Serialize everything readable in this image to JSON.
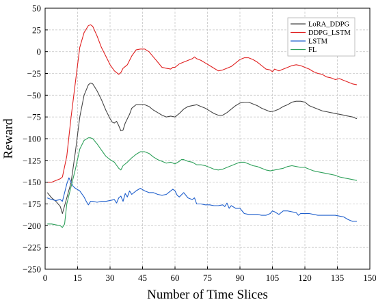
{
  "chart_data": {
    "type": "line",
    "xlabel": "Number of Time Slices",
    "ylabel": "Reward",
    "xlim": [
      0,
      150
    ],
    "ylim": [
      -250,
      50
    ],
    "xticks": [
      0,
      15,
      30,
      45,
      60,
      75,
      90,
      105,
      120,
      135,
      150
    ],
    "yticks": [
      50,
      25,
      0,
      -25,
      -50,
      -75,
      -100,
      -125,
      -150,
      -175,
      -200,
      -225,
      -250
    ],
    "grid": true,
    "legend_position": "top-right",
    "series": [
      {
        "name": "LoRA_DDPG",
        "color": "#444444",
        "points": [
          [
            1,
            -162
          ],
          [
            3,
            -168
          ],
          [
            5,
            -172
          ],
          [
            7,
            -178
          ],
          [
            8,
            -186
          ],
          [
            10,
            -168
          ],
          [
            12,
            -150
          ],
          [
            14,
            -115
          ],
          [
            16,
            -75
          ],
          [
            18,
            -50
          ],
          [
            20,
            -38
          ],
          [
            21,
            -36
          ],
          [
            22,
            -37
          ],
          [
            24,
            -45
          ],
          [
            26,
            -55
          ],
          [
            28,
            -67
          ],
          [
            30,
            -77
          ],
          [
            31,
            -81
          ],
          [
            32,
            -82
          ],
          [
            33,
            -80
          ],
          [
            34,
            -85
          ],
          [
            35,
            -91
          ],
          [
            36,
            -90
          ],
          [
            37,
            -82
          ],
          [
            39,
            -72
          ],
          [
            40,
            -65
          ],
          [
            42,
            -61
          ],
          [
            44,
            -61
          ],
          [
            46,
            -61
          ],
          [
            48,
            -63
          ],
          [
            50,
            -67
          ],
          [
            52,
            -70
          ],
          [
            54,
            -73
          ],
          [
            56,
            -75
          ],
          [
            58,
            -74
          ],
          [
            60,
            -75
          ],
          [
            62,
            -71
          ],
          [
            64,
            -66
          ],
          [
            66,
            -63
          ],
          [
            68,
            -62
          ],
          [
            70,
            -61
          ],
          [
            72,
            -63
          ],
          [
            74,
            -65
          ],
          [
            76,
            -68
          ],
          [
            78,
            -71
          ],
          [
            80,
            -73
          ],
          [
            82,
            -73
          ],
          [
            84,
            -70
          ],
          [
            86,
            -66
          ],
          [
            88,
            -62
          ],
          [
            90,
            -59
          ],
          [
            92,
            -58
          ],
          [
            94,
            -58
          ],
          [
            96,
            -60
          ],
          [
            98,
            -62
          ],
          [
            100,
            -65
          ],
          [
            102,
            -67
          ],
          [
            104,
            -69
          ],
          [
            106,
            -68
          ],
          [
            108,
            -66
          ],
          [
            110,
            -63
          ],
          [
            112,
            -61
          ],
          [
            114,
            -58
          ],
          [
            116,
            -57
          ],
          [
            118,
            -57
          ],
          [
            120,
            -58
          ],
          [
            122,
            -62
          ],
          [
            124,
            -64
          ],
          [
            126,
            -66
          ],
          [
            128,
            -68
          ],
          [
            130,
            -69
          ],
          [
            132,
            -70
          ],
          [
            134,
            -71
          ],
          [
            136,
            -72
          ],
          [
            138,
            -73
          ],
          [
            140,
            -74
          ],
          [
            142,
            -75
          ],
          [
            144,
            -77
          ]
        ]
      },
      {
        "name": "DDPG_LSTM",
        "color": "#e02020",
        "points": [
          [
            1,
            -150
          ],
          [
            3,
            -150
          ],
          [
            5,
            -148
          ],
          [
            7,
            -146
          ],
          [
            8,
            -144
          ],
          [
            10,
            -120
          ],
          [
            12,
            -75
          ],
          [
            14,
            -35
          ],
          [
            16,
            5
          ],
          [
            18,
            22
          ],
          [
            20,
            30
          ],
          [
            21,
            31
          ],
          [
            22,
            29
          ],
          [
            24,
            18
          ],
          [
            26,
            5
          ],
          [
            28,
            -5
          ],
          [
            30,
            -15
          ],
          [
            32,
            -22
          ],
          [
            34,
            -26
          ],
          [
            35,
            -24
          ],
          [
            36,
            -19
          ],
          [
            38,
            -15
          ],
          [
            40,
            -5
          ],
          [
            42,
            2
          ],
          [
            44,
            3
          ],
          [
            46,
            3
          ],
          [
            48,
            0
          ],
          [
            50,
            -6
          ],
          [
            52,
            -12
          ],
          [
            54,
            -18
          ],
          [
            56,
            -19
          ],
          [
            58,
            -20
          ],
          [
            59,
            -18
          ],
          [
            60,
            -18
          ],
          [
            62,
            -14
          ],
          [
            64,
            -12
          ],
          [
            66,
            -10
          ],
          [
            68,
            -8
          ],
          [
            69,
            -6
          ],
          [
            70,
            -8
          ],
          [
            72,
            -10
          ],
          [
            74,
            -13
          ],
          [
            76,
            -16
          ],
          [
            78,
            -19
          ],
          [
            80,
            -22
          ],
          [
            82,
            -21
          ],
          [
            84,
            -19
          ],
          [
            86,
            -17
          ],
          [
            88,
            -13
          ],
          [
            90,
            -9
          ],
          [
            92,
            -7
          ],
          [
            94,
            -7
          ],
          [
            96,
            -9
          ],
          [
            98,
            -12
          ],
          [
            100,
            -16
          ],
          [
            102,
            -20
          ],
          [
            104,
            -21
          ],
          [
            105,
            -23
          ],
          [
            106,
            -20
          ],
          [
            108,
            -22
          ],
          [
            110,
            -20
          ],
          [
            112,
            -18
          ],
          [
            114,
            -16
          ],
          [
            116,
            -15
          ],
          [
            118,
            -16
          ],
          [
            120,
            -18
          ],
          [
            122,
            -20
          ],
          [
            124,
            -23
          ],
          [
            126,
            -25
          ],
          [
            128,
            -26
          ],
          [
            130,
            -29
          ],
          [
            132,
            -30
          ],
          [
            134,
            -32
          ],
          [
            136,
            -31
          ],
          [
            138,
            -33
          ],
          [
            140,
            -35
          ],
          [
            142,
            -37
          ],
          [
            144,
            -38
          ]
        ]
      },
      {
        "name": "LSTM",
        "color": "#1f5fcc",
        "points": [
          [
            1,
            -168
          ],
          [
            3,
            -170
          ],
          [
            5,
            -171
          ],
          [
            7,
            -170
          ],
          [
            8,
            -172
          ],
          [
            10,
            -152
          ],
          [
            11,
            -145
          ],
          [
            12,
            -150
          ],
          [
            13,
            -155
          ],
          [
            14,
            -157
          ],
          [
            16,
            -160
          ],
          [
            18,
            -167
          ],
          [
            19,
            -172
          ],
          [
            20,
            -176
          ],
          [
            21,
            -172
          ],
          [
            22,
            -172
          ],
          [
            24,
            -173
          ],
          [
            26,
            -172
          ],
          [
            28,
            -172
          ],
          [
            30,
            -171
          ],
          [
            32,
            -170
          ],
          [
            33,
            -174
          ],
          [
            34,
            -168
          ],
          [
            35,
            -166
          ],
          [
            36,
            -172
          ],
          [
            37,
            -163
          ],
          [
            38,
            -167
          ],
          [
            39,
            -160
          ],
          [
            40,
            -164
          ],
          [
            42,
            -160
          ],
          [
            44,
            -157
          ],
          [
            46,
            -160
          ],
          [
            48,
            -162
          ],
          [
            50,
            -162
          ],
          [
            52,
            -164
          ],
          [
            54,
            -165
          ],
          [
            56,
            -164
          ],
          [
            57,
            -162
          ],
          [
            58,
            -160
          ],
          [
            59,
            -158
          ],
          [
            60,
            -160
          ],
          [
            61,
            -165
          ],
          [
            62,
            -167
          ],
          [
            64,
            -162
          ],
          [
            66,
            -168
          ],
          [
            68,
            -170
          ],
          [
            69,
            -168
          ],
          [
            70,
            -175
          ],
          [
            72,
            -175
          ],
          [
            74,
            -176
          ],
          [
            76,
            -176
          ],
          [
            78,
            -177
          ],
          [
            80,
            -177
          ],
          [
            82,
            -176
          ],
          [
            83,
            -178
          ],
          [
            84,
            -174
          ],
          [
            85,
            -180
          ],
          [
            86,
            -177
          ],
          [
            88,
            -180
          ],
          [
            90,
            -180
          ],
          [
            92,
            -186
          ],
          [
            94,
            -187
          ],
          [
            96,
            -187
          ],
          [
            98,
            -187
          ],
          [
            100,
            -188
          ],
          [
            102,
            -188
          ],
          [
            104,
            -186
          ],
          [
            105,
            -183
          ],
          [
            106,
            -184
          ],
          [
            108,
            -187
          ],
          [
            110,
            -183
          ],
          [
            112,
            -183
          ],
          [
            114,
            -184
          ],
          [
            116,
            -185
          ],
          [
            117,
            -188
          ],
          [
            118,
            -186
          ],
          [
            120,
            -186
          ],
          [
            122,
            -186
          ],
          [
            124,
            -187
          ],
          [
            126,
            -188
          ],
          [
            128,
            -188
          ],
          [
            130,
            -188
          ],
          [
            132,
            -188
          ],
          [
            134,
            -188
          ],
          [
            136,
            -189
          ],
          [
            138,
            -190
          ],
          [
            140,
            -193
          ],
          [
            142,
            -195
          ],
          [
            144,
            -195
          ]
        ]
      },
      {
        "name": "FL",
        "color": "#2ea05a",
        "points": [
          [
            1,
            -198
          ],
          [
            3,
            -198
          ],
          [
            5,
            -199
          ],
          [
            7,
            -200
          ],
          [
            8,
            -202
          ],
          [
            9,
            -198
          ],
          [
            10,
            -175
          ],
          [
            12,
            -155
          ],
          [
            14,
            -135
          ],
          [
            16,
            -112
          ],
          [
            18,
            -102
          ],
          [
            20,
            -99
          ],
          [
            21,
            -99
          ],
          [
            22,
            -100
          ],
          [
            24,
            -106
          ],
          [
            26,
            -113
          ],
          [
            28,
            -120
          ],
          [
            30,
            -124
          ],
          [
            32,
            -127
          ],
          [
            34,
            -134
          ],
          [
            35,
            -136
          ],
          [
            36,
            -131
          ],
          [
            38,
            -127
          ],
          [
            40,
            -122
          ],
          [
            42,
            -118
          ],
          [
            44,
            -115
          ],
          [
            46,
            -115
          ],
          [
            48,
            -117
          ],
          [
            50,
            -121
          ],
          [
            52,
            -124
          ],
          [
            54,
            -126
          ],
          [
            56,
            -128
          ],
          [
            58,
            -127
          ],
          [
            60,
            -129
          ],
          [
            62,
            -126
          ],
          [
            63,
            -124
          ],
          [
            64,
            -124
          ],
          [
            66,
            -126
          ],
          [
            68,
            -127
          ],
          [
            70,
            -130
          ],
          [
            72,
            -130
          ],
          [
            74,
            -131
          ],
          [
            76,
            -133
          ],
          [
            78,
            -135
          ],
          [
            80,
            -136
          ],
          [
            82,
            -135
          ],
          [
            84,
            -133
          ],
          [
            86,
            -131
          ],
          [
            88,
            -129
          ],
          [
            90,
            -127
          ],
          [
            92,
            -127
          ],
          [
            94,
            -129
          ],
          [
            96,
            -131
          ],
          [
            98,
            -132
          ],
          [
            100,
            -134
          ],
          [
            102,
            -136
          ],
          [
            104,
            -137
          ],
          [
            106,
            -136
          ],
          [
            108,
            -135
          ],
          [
            110,
            -134
          ],
          [
            112,
            -132
          ],
          [
            114,
            -131
          ],
          [
            116,
            -132
          ],
          [
            118,
            -133
          ],
          [
            120,
            -133
          ],
          [
            122,
            -135
          ],
          [
            124,
            -137
          ],
          [
            126,
            -138
          ],
          [
            128,
            -139
          ],
          [
            130,
            -140
          ],
          [
            132,
            -141
          ],
          [
            134,
            -142
          ],
          [
            136,
            -144
          ],
          [
            138,
            -145
          ],
          [
            140,
            -146
          ],
          [
            142,
            -147
          ],
          [
            144,
            -148
          ]
        ]
      }
    ]
  }
}
